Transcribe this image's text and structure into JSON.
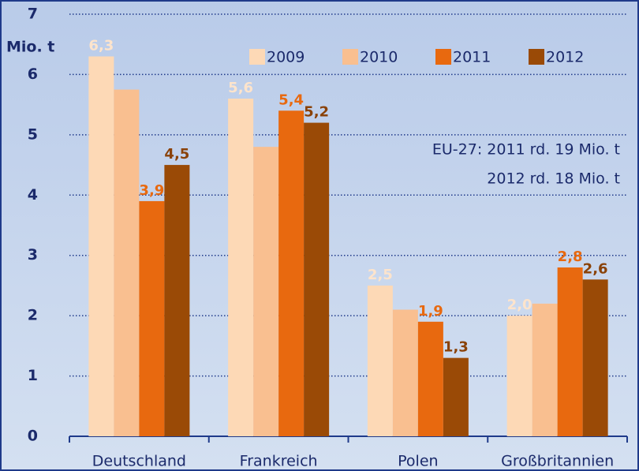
{
  "chart_data": {
    "type": "bar",
    "y_label": "Mio. t",
    "categories": [
      "Deutschland",
      "Frankreich",
      "Polen",
      "Großbritannien"
    ],
    "series": [
      {
        "name": "2009",
        "color": "#fdd9b6",
        "label_color": "#fde4cc",
        "values": [
          6.3,
          5.6,
          2.5,
          2.0
        ],
        "value_labels": [
          "6,3",
          "5,6",
          "2,5",
          "2,0"
        ]
      },
      {
        "name": "2010",
        "color": "#f9bf90",
        "values": [
          5.75,
          4.8,
          2.1,
          2.2
        ]
      },
      {
        "name": "2011",
        "color": "#e8690f",
        "label_color": "#e8690f",
        "values": [
          3.9,
          5.4,
          1.9,
          2.8
        ],
        "value_labels": [
          "3,9",
          "5,4",
          "1,9",
          "2,8"
        ]
      },
      {
        "name": "2012",
        "color": "#9a4a06",
        "label_color": "#8a4208",
        "values": [
          4.5,
          5.2,
          1.3,
          2.6
        ],
        "value_labels": [
          "4,5",
          "5,2",
          "1,3",
          "2,6"
        ]
      }
    ],
    "annotations": [
      "EU-27:  2011 rd. 19 Mio. t",
      "2012 rd. 18 Mio. t"
    ],
    "ylim": [
      0,
      7
    ],
    "yticks": [
      0,
      1,
      2,
      3,
      4,
      5,
      6,
      7
    ],
    "grid": true
  }
}
